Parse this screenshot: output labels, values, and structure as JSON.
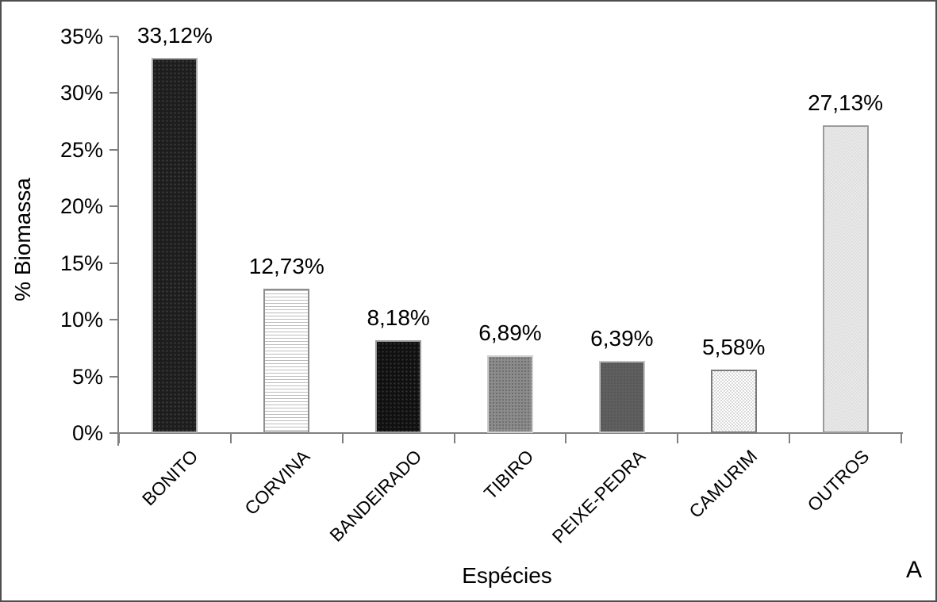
{
  "figure": {
    "panel_label": "A",
    "background": "#ffffff",
    "border_color": "#4f4f4f",
    "axis_color": "#808080",
    "text_color": "#000000"
  },
  "chart_data": {
    "type": "bar",
    "title": "",
    "xlabel": "Espécies",
    "ylabel": "% Biomassa",
    "ylim": [
      0,
      35
    ],
    "y_tick_step": 5,
    "y_tick_labels": [
      "0%",
      "5%",
      "10%",
      "15%",
      "20%",
      "25%",
      "30%",
      "35%"
    ],
    "grid": false,
    "legend": "none",
    "decimal_separator": ",",
    "categories": [
      "BONITO",
      "CORVINA",
      "BANDEIRADO",
      "TIBIRO",
      "PEIXE-PEDRA",
      "CAMURIM",
      "OUTROS"
    ],
    "values": [
      33.12,
      12.73,
      8.18,
      6.89,
      6.39,
      5.58,
      27.13
    ],
    "data_labels": [
      "33,12%",
      "12,73%",
      "8,18%",
      "6,89%",
      "6,39%",
      "5,58%",
      "27,13%"
    ],
    "bar_styles": [
      {
        "fill": "#1d1d1d",
        "pattern": "dots-dark",
        "border": "#ababab"
      },
      {
        "fill": "#ffffff",
        "pattern": "hlines",
        "border": "#8f8f8f"
      },
      {
        "fill": "#101010",
        "pattern": "dots-dark",
        "border": "#9b9b9b"
      },
      {
        "fill": "#8c8c8c",
        "pattern": "dots-mid",
        "border": "#cfcfcf"
      },
      {
        "fill": "#5f5f5f",
        "pattern": "dots-faint",
        "border": "#c2c2c2"
      },
      {
        "fill": "#ffffff",
        "pattern": "checker",
        "border": "#7a7a7a"
      },
      {
        "fill": "#e9e9e9",
        "pattern": "checker-faint",
        "border": "#9b9b9b"
      }
    ]
  }
}
